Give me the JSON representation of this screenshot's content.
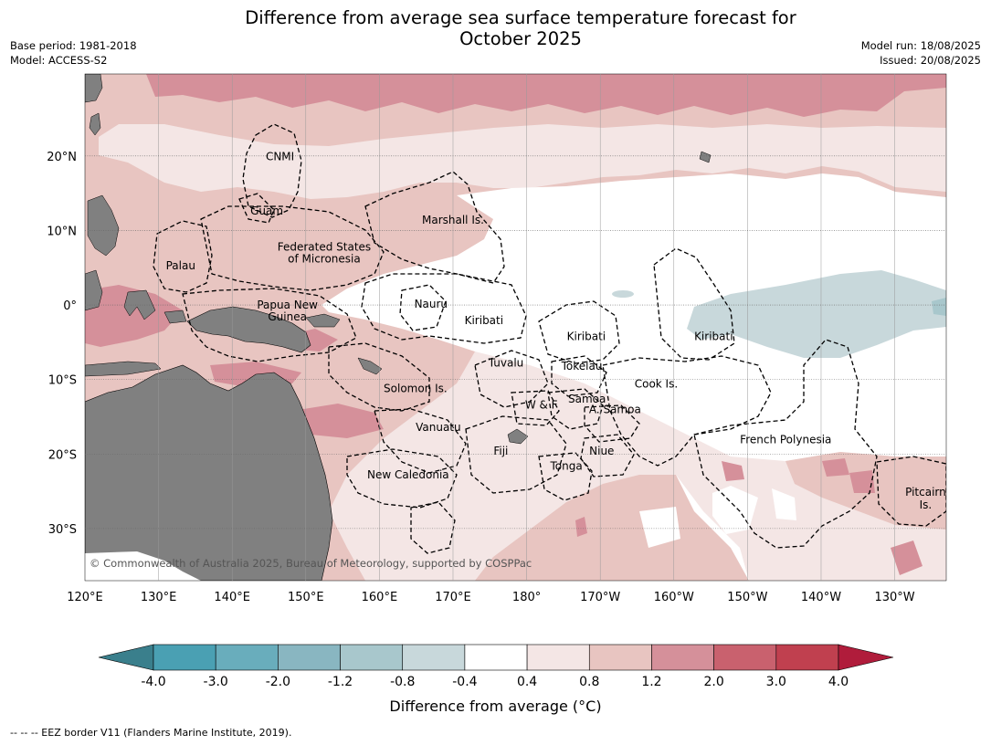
{
  "header": {
    "title_line1": "Difference from average sea surface temperature forecast for",
    "title_line2": "October 2025",
    "base_period": "Base period: 1981-2018",
    "model": "Model: ACCESS-S2",
    "model_run": "Model run: 18/08/2025",
    "issued": "Issued: 20/08/2025"
  },
  "map": {
    "lon_range": [
      120,
      237
    ],
    "lat_range": [
      -37,
      31
    ],
    "lon_ticks": [
      "120°E",
      "130°E",
      "140°E",
      "150°E",
      "160°E",
      "170°E",
      "180°",
      "170°W",
      "160°W",
      "150°W",
      "140°W",
      "130°W"
    ],
    "lat_ticks": [
      "20°N",
      "10°N",
      "0°",
      "10°S",
      "20°S",
      "30°S"
    ],
    "colors": {
      "land": "#808080",
      "border": "#000000",
      "grid": "#999999"
    },
    "labels": [
      {
        "text": "CNMI",
        "lon": 146.5,
        "lat": 19.9
      },
      {
        "text": "Guam",
        "lon": 144.7,
        "lat": 12.6
      },
      {
        "text": "Marshall Is.",
        "lon": 170.0,
        "lat": 11.4
      },
      {
        "text": "Federated States",
        "lon": 152.5,
        "lat": 7.8
      },
      {
        "text": "of Micronesia",
        "lon": 152.5,
        "lat": 6.2
      },
      {
        "text": "Palau",
        "lon": 133.0,
        "lat": 5.3
      },
      {
        "text": "Papua New",
        "lon": 147.5,
        "lat": 0.0
      },
      {
        "text": "Guinea",
        "lon": 147.5,
        "lat": -1.6
      },
      {
        "text": "Nauru",
        "lon": 167.0,
        "lat": 0.1
      },
      {
        "text": "Kiribati",
        "lon": 174.2,
        "lat": -2.1
      },
      {
        "text": "Kiribati",
        "lon": 188.1,
        "lat": -4.2
      },
      {
        "text": "Kiribati",
        "lon": 205.4,
        "lat": -4.2
      },
      {
        "text": "Tuvalu",
        "lon": 177.2,
        "lat": -7.8
      },
      {
        "text": "Tokelau",
        "lon": 187.5,
        "lat": -8.2
      },
      {
        "text": "Cook Is.",
        "lon": 197.6,
        "lat": -10.6
      },
      {
        "text": "Solomon Is.",
        "lon": 164.9,
        "lat": -11.2
      },
      {
        "text": "Samoa",
        "lon": 188.2,
        "lat": -12.6
      },
      {
        "text": "W & F",
        "lon": 182.0,
        "lat": -13.4
      },
      {
        "text": "A. Samoa",
        "lon": 192.0,
        "lat": -14.0
      },
      {
        "text": "Vanuatu",
        "lon": 168.0,
        "lat": -16.4
      },
      {
        "text": "French Polynesia",
        "lon": 215.2,
        "lat": -18.1
      },
      {
        "text": "Fiji",
        "lon": 176.5,
        "lat": -19.6
      },
      {
        "text": "Niue",
        "lon": 190.2,
        "lat": -19.6
      },
      {
        "text": "Tonga",
        "lon": 185.4,
        "lat": -21.6
      },
      {
        "text": "New Caledonia",
        "lon": 163.9,
        "lat": -22.8
      },
      {
        "text": "Pitcairn",
        "lon": 234.2,
        "lat": -25.1
      },
      {
        "text": "Is.",
        "lon": 234.2,
        "lat": -26.8
      }
    ],
    "copyright": "© Commonwealth of Australia 2025, Bureau of Meteorology, supported by COSPPac"
  },
  "colorbar": {
    "ticks": [
      "-4.0",
      "-3.0",
      "-2.0",
      "-1.2",
      "-0.8",
      "-0.4",
      "0.4",
      "0.8",
      "1.2",
      "2.0",
      "3.0",
      "4.0"
    ],
    "colors": [
      "#3a7f8c",
      "#4aa0b3",
      "#69adbc",
      "#89b6c1",
      "#a8c7cc",
      "#c8d8db",
      "#ffffff",
      "#f4e6e5",
      "#e8c5c1",
      "#d5909a",
      "#c9616e",
      "#c0404f",
      "#b01c3b"
    ],
    "label": "Difference from average (°C)"
  },
  "footnote": "--  --  -- EEZ border V11 (Flanders Marine Institute, 2019)."
}
